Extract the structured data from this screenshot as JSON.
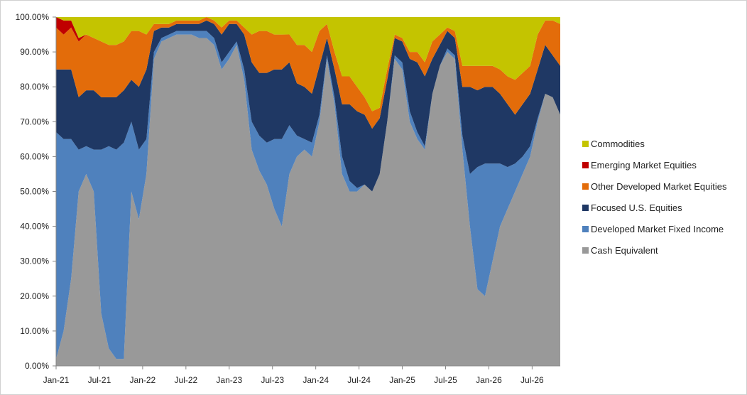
{
  "chart_data": {
    "type": "area",
    "stacking": "100%",
    "title": "",
    "xlabel": "",
    "ylabel": "",
    "ylim": [
      0,
      100
    ],
    "y_ticks": [
      "0.00%",
      "10.00%",
      "20.00%",
      "30.00%",
      "40.00%",
      "50.00%",
      "60.00%",
      "70.00%",
      "80.00%",
      "90.00%",
      "100.00%"
    ],
    "x_ticks": [
      "Jan-21",
      "Jul-21",
      "Jan-22",
      "Jul-22",
      "Jan-23",
      "Jul-23",
      "Jan-24",
      "Jul-24",
      "Jan-25",
      "Jul-25",
      "Jan-26",
      "Jul-26"
    ],
    "grid": false,
    "legend_position": "right",
    "x": [
      "2021-01",
      "2021-02",
      "2021-03",
      "2021-04",
      "2021-05",
      "2021-06",
      "2021-07",
      "2021-08",
      "2021-09",
      "2021-10",
      "2021-11",
      "2021-12",
      "2022-01",
      "2022-02",
      "2022-03",
      "2022-04",
      "2022-05",
      "2022-06",
      "2022-07",
      "2022-08",
      "2022-09",
      "2022-10",
      "2022-11",
      "2022-12",
      "2023-01",
      "2023-02",
      "2023-03",
      "2023-04",
      "2023-05",
      "2023-06",
      "2023-07",
      "2023-08",
      "2023-09",
      "2023-10",
      "2023-11",
      "2023-12",
      "2024-01",
      "2024-02",
      "2024-03",
      "2024-04",
      "2024-05",
      "2024-06",
      "2024-07",
      "2024-08",
      "2024-09",
      "2024-10",
      "2024-11",
      "2024-12",
      "2025-01",
      "2025-02",
      "2025-03",
      "2025-04",
      "2025-05",
      "2025-06",
      "2025-07",
      "2025-08",
      "2025-09",
      "2025-10",
      "2025-11",
      "2025-12",
      "2026-01",
      "2026-02",
      "2026-03",
      "2026-04",
      "2026-05",
      "2026-06",
      "2026-07",
      "2026-08"
    ],
    "series": [
      {
        "name": "Cash Equivalent",
        "color": "#999999",
        "values": [
          2,
          10,
          25,
          50,
          55,
          50,
          15,
          5,
          2,
          2,
          50,
          42,
          55,
          88,
          93,
          94,
          95,
          95,
          95,
          94,
          94,
          92,
          85,
          88,
          92,
          82,
          62,
          56,
          52,
          45,
          40,
          55,
          60,
          62,
          60,
          70,
          88,
          75,
          55,
          50,
          50,
          52,
          50,
          55,
          70,
          88,
          85,
          70,
          65,
          62,
          78,
          86,
          90,
          88,
          62,
          40,
          22,
          20,
          30,
          40,
          45,
          50,
          55,
          60,
          70,
          78,
          77,
          72
        ]
      },
      {
        "name": "Developed Market Fixed Income",
        "color": "#4F81BD",
        "values": [
          65,
          55,
          40,
          12,
          8,
          12,
          47,
          58,
          60,
          62,
          20,
          20,
          10,
          2,
          1,
          1,
          1,
          1,
          1,
          2,
          2,
          2,
          2,
          2,
          1,
          3,
          8,
          10,
          12,
          20,
          25,
          14,
          6,
          3,
          4,
          2,
          1,
          2,
          5,
          3,
          1,
          0,
          0,
          0,
          0,
          1,
          2,
          3,
          2,
          1,
          0,
          0,
          1,
          1,
          4,
          15,
          35,
          38,
          28,
          18,
          12,
          8,
          5,
          3,
          1,
          0,
          0,
          0
        ]
      },
      {
        "name": "Focused U.S. Equities",
        "color": "#1F3864",
        "values": [
          18,
          20,
          20,
          15,
          16,
          17,
          15,
          14,
          15,
          15,
          12,
          18,
          20,
          6,
          3,
          2,
          2,
          2,
          2,
          2,
          3,
          4,
          8,
          8,
          5,
          10,
          17,
          18,
          20,
          20,
          20,
          18,
          15,
          15,
          14,
          14,
          5,
          8,
          15,
          22,
          22,
          20,
          18,
          16,
          12,
          5,
          6,
          15,
          20,
          20,
          10,
          6,
          5,
          5,
          14,
          25,
          22,
          22,
          22,
          20,
          18,
          14,
          15,
          15,
          14,
          14,
          12,
          14
        ]
      },
      {
        "name": "Other Developed Market Equities",
        "color": "#E36C0A",
        "values": [
          12,
          10,
          12,
          16,
          16,
          15,
          16,
          15,
          15,
          14,
          14,
          16,
          10,
          2,
          1,
          1,
          1,
          1,
          1,
          1,
          1,
          1,
          2,
          1,
          1,
          2,
          8,
          12,
          12,
          10,
          10,
          8,
          11,
          12,
          12,
          10,
          4,
          5,
          8,
          8,
          7,
          5,
          5,
          3,
          3,
          1,
          1,
          2,
          3,
          4,
          5,
          3,
          1,
          2,
          6,
          6,
          7,
          6,
          6,
          7,
          8,
          10,
          9,
          8,
          10,
          7,
          10,
          12
        ]
      },
      {
        "name": "Emerging Market Equities",
        "color": "#C00000",
        "values": [
          3,
          4,
          2,
          1,
          0,
          0,
          0,
          0,
          0,
          0,
          0,
          0,
          0,
          0,
          0,
          0,
          0,
          0,
          0,
          0,
          0,
          0,
          0,
          0,
          0,
          0,
          0,
          0,
          0,
          0,
          0,
          0,
          0,
          0,
          0,
          0,
          0,
          0,
          0,
          0,
          0,
          0,
          0,
          0,
          0,
          0,
          0,
          0,
          0,
          0,
          0,
          0,
          0,
          0,
          0,
          0,
          0,
          0,
          0,
          0,
          0,
          0,
          0,
          0,
          0,
          0,
          0,
          0
        ]
      },
      {
        "name": "Commodities",
        "color": "#C4C400",
        "values": [
          0,
          1,
          1,
          6,
          5,
          6,
          7,
          8,
          8,
          7,
          4,
          4,
          5,
          2,
          2,
          2,
          1,
          1,
          1,
          1,
          0,
          1,
          3,
          1,
          1,
          3,
          5,
          4,
          4,
          5,
          5,
          5,
          8,
          8,
          10,
          4,
          2,
          10,
          17,
          17,
          20,
          23,
          27,
          26,
          15,
          5,
          6,
          10,
          10,
          13,
          7,
          5,
          3,
          4,
          14,
          14,
          14,
          14,
          14,
          15,
          17,
          18,
          16,
          14,
          5,
          1,
          1,
          2
        ]
      }
    ]
  }
}
